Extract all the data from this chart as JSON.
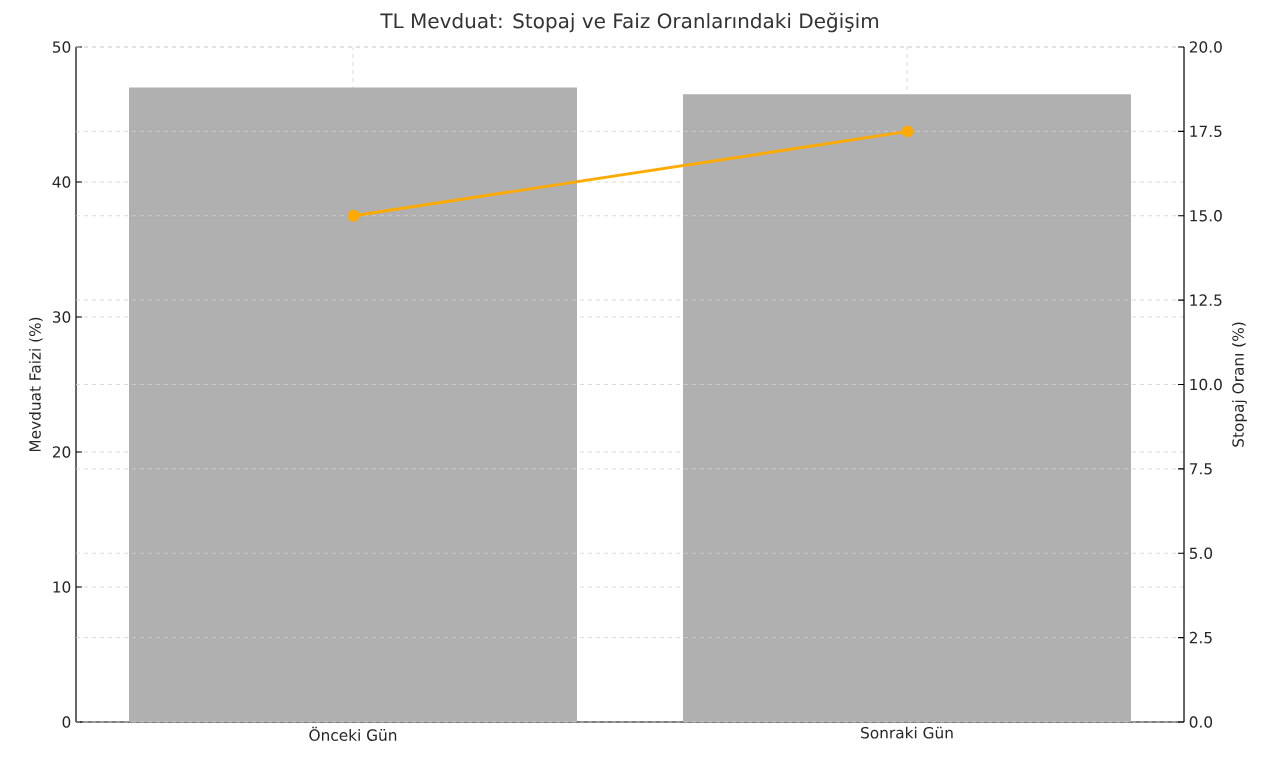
{
  "chart_data": {
    "type": "bar",
    "title": "TL Mevduat: Stopaj ve Faiz Oranlarındaki Değişim",
    "categories": [
      "Önceki Gün",
      "Sonraki Gün"
    ],
    "series": [
      {
        "values": [
          47,
          46.5
        ],
        "color": "#b0b0b0"
      },
      {
        "type": "line",
        "axis": "y2",
        "values": [
          15,
          17.5
        ],
        "color": "#ffaa00"
      }
    ],
    "ylabel": "Mevduat Faizi (%)",
    "y2label": "Stopaj Oranı (%)",
    "ylim": [
      0,
      50
    ],
    "yticks": [
      0,
      10,
      20,
      30,
      40,
      50
    ],
    "y2lim": [
      0,
      20
    ],
    "y2ticks": [
      {
        "value": 0,
        "label": "0.0"
      },
      {
        "value": 2.5,
        "label": "2.5"
      },
      {
        "value": 5,
        "label": "5.0"
      },
      {
        "value": 7.5,
        "label": "7.5"
      },
      {
        "value": 10,
        "label": "10.0"
      },
      {
        "value": 12.5,
        "label": "12.5"
      },
      {
        "value": 15,
        "label": "15.0"
      },
      {
        "value": 17.5,
        "label": "17.5"
      },
      {
        "value": 20,
        "label": "20.0"
      }
    ],
    "grid": true,
    "marker": "circle"
  }
}
